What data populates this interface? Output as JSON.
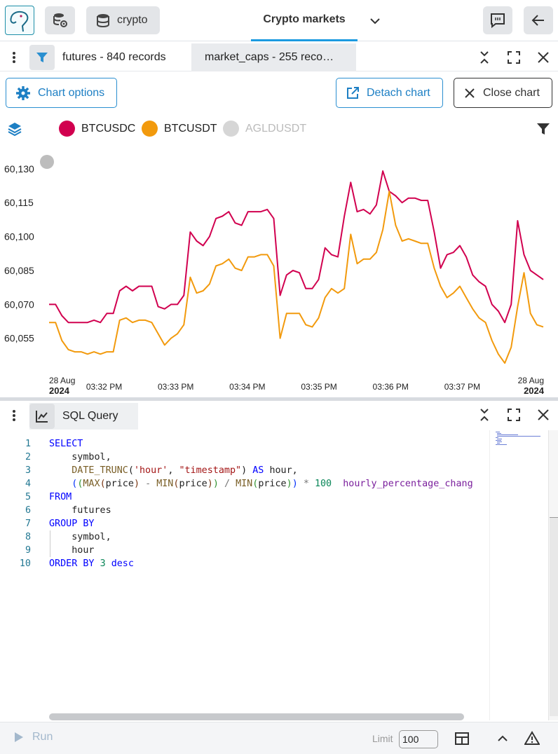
{
  "header": {
    "db_label": "crypto",
    "title": "Crypto markets"
  },
  "tabs": [
    {
      "label": "futures - 840 records"
    },
    {
      "label": "market_caps - 255 reco…"
    }
  ],
  "chart_toolbar": {
    "chart_options": "Chart options",
    "detach_chart": "Detach chart",
    "close_chart": "Close chart"
  },
  "legend": [
    {
      "name": "BTCUSDC",
      "color": "#d1004f",
      "active": true
    },
    {
      "name": "BTCUSDT",
      "color": "#f29a0d",
      "active": true
    },
    {
      "name": "AGLDUSDT",
      "color": "#cccccc",
      "active": false
    }
  ],
  "chart_data": {
    "type": "line",
    "title": "",
    "xlabel": "",
    "ylabel": "",
    "ylim": [
      60045,
      60138
    ],
    "xlim": [
      0,
      69
    ],
    "yticks": [
      "60,130",
      "60,115",
      "60,100",
      "60,085",
      "60,070",
      "60,055"
    ],
    "ytick_values": [
      60130,
      60115,
      60100,
      60085,
      60070,
      60055
    ],
    "xticks": [
      {
        "x": 0,
        "line1": "28 Aug",
        "line2": "2024"
      },
      {
        "x": 7,
        "line1": "03:32 PM",
        "line2": ""
      },
      {
        "x": 17,
        "line1": "03:33 PM",
        "line2": ""
      },
      {
        "x": 27,
        "line1": "03:34 PM",
        "line2": ""
      },
      {
        "x": 37,
        "line1": "03:35 PM",
        "line2": ""
      },
      {
        "x": 47,
        "line1": "03:36 PM",
        "line2": ""
      },
      {
        "x": 57,
        "line1": "03:37 PM",
        "line2": ""
      },
      {
        "x": 67,
        "line1": "28 Aug",
        "line2": "2024"
      }
    ],
    "series": [
      {
        "name": "BTCUSDC",
        "color": "#d1004f",
        "values": [
          60070,
          60070,
          60065,
          60062,
          60062,
          60062,
          60062,
          60063,
          60062,
          60066,
          60066,
          60076,
          60078,
          60076,
          60078,
          60078,
          60078,
          60069,
          60068,
          60070,
          60070,
          60074,
          60102,
          60098,
          60096,
          60100,
          60108,
          60109,
          60111,
          60106,
          60105,
          60111,
          60111,
          60111,
          60112,
          60108,
          60074,
          60083,
          60085,
          60084,
          60077,
          60077,
          60081,
          60095,
          60092,
          60091,
          60109,
          60124,
          60111,
          60112,
          60110,
          60114,
          60129,
          60120,
          60118,
          60115,
          60117,
          60117,
          60116,
          60116,
          60102,
          60086,
          60092,
          60093,
          60096,
          60091,
          60083,
          60080,
          60078,
          60070,
          60067,
          60062,
          60070,
          60107,
          60092,
          60085,
          60083,
          60081
        ]
      },
      {
        "name": "BTCUSDT",
        "color": "#f29a0d",
        "values": [
          60062,
          60062,
          60054,
          60050,
          60049,
          60049,
          60048,
          60049,
          60048,
          60049,
          60049,
          60063,
          60064,
          60062,
          60063,
          60063,
          60062,
          60057,
          60052,
          60055,
          60057,
          60061,
          60082,
          60075,
          60076,
          60079,
          60087,
          60088,
          60090,
          60086,
          60085,
          60091,
          60091,
          60092,
          60092,
          60087,
          60055,
          60066,
          60066,
          60066,
          60061,
          60060,
          60064,
          60073,
          60077,
          60075,
          60077,
          60101,
          60088,
          60090,
          60090,
          60093,
          60103,
          60120,
          60105,
          60098,
          60099,
          60098,
          60097,
          60097,
          60086,
          60078,
          60073,
          60075,
          60078,
          60073,
          60068,
          60064,
          60062,
          60054,
          60048,
          60044,
          60051,
          60069,
          60084,
          60066,
          60061,
          60060
        ]
      }
    ]
  },
  "sql_tab": {
    "label": "SQL Query"
  },
  "code_lines": [
    {
      "n": "1"
    },
    {
      "n": "2"
    },
    {
      "n": "3"
    },
    {
      "n": "4"
    },
    {
      "n": "5"
    },
    {
      "n": "6"
    },
    {
      "n": "7"
    },
    {
      "n": "8"
    },
    {
      "n": "9"
    },
    {
      "n": "10"
    }
  ],
  "code": {
    "l1_select": "SELECT",
    "l2_symbol": "symbol,",
    "l3_fn": "DATE_TRUNC",
    "l3_str1": "'hour'",
    "l3_str2": "\"timestamp\"",
    "l3_as": "AS",
    "l3_alias": "hour,",
    "l4_max": "MAX",
    "l4_min1": "MIN",
    "l4_min2": "MIN",
    "l4_price": "price",
    "l4_num": "100",
    "l4_alias": "hourly_percentage_chang",
    "l5_from": "FROM",
    "l6_table": "futures",
    "l7_group": "GROUP BY",
    "l8_symbol": "symbol,",
    "l9_hour": "hour",
    "l10_order": "ORDER BY",
    "l10_num": "3",
    "l10_desc": "desc"
  },
  "footer": {
    "run_label": "Run",
    "limit_label": "Limit",
    "limit_value": "100"
  }
}
